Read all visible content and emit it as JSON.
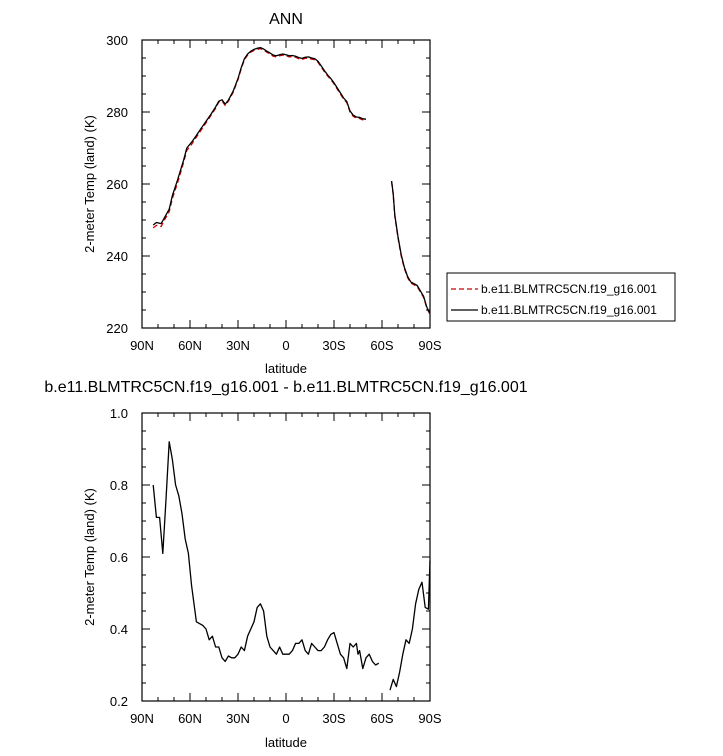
{
  "chart_data": [
    {
      "type": "line",
      "title": "ANN",
      "xlabel": "latitude",
      "ylabel": "2-meter Temp (land) (K)",
      "xlim": [
        90,
        -90
      ],
      "ylim": [
        220,
        300
      ],
      "xticks": [
        90,
        60,
        30,
        0,
        -30,
        -60,
        -90
      ],
      "xtick_labels": [
        "90N",
        "60N",
        "30N",
        "0",
        "30S",
        "60S",
        "90S"
      ],
      "yticks": [
        220,
        240,
        260,
        280,
        300
      ],
      "ytick_labels": [
        "220",
        "240",
        "260",
        "280",
        "300"
      ],
      "grid": false,
      "legend_position": "right",
      "series": [
        {
          "name": "b.e11.BLMTRC5CN.f19_g16.001",
          "color": "#cc0000",
          "style": "dashed",
          "points": [
            [
              83,
              247.8
            ],
            [
              81,
              248.5
            ],
            [
              78,
              248.2
            ],
            [
              76,
              250
            ],
            [
              73,
              252.3
            ],
            [
              71,
              256
            ],
            [
              68,
              260
            ],
            [
              66,
              263
            ],
            [
              64,
              266
            ],
            [
              62,
              269.3
            ],
            [
              59,
              271
            ],
            [
              56,
              273
            ],
            [
              53,
              275
            ],
            [
              50,
              277
            ],
            [
              47,
              279
            ],
            [
              44,
              281
            ],
            [
              42,
              282.8
            ],
            [
              40,
              283.1
            ],
            [
              38,
              281.8
            ],
            [
              36,
              283
            ],
            [
              33,
              285.5
            ],
            [
              30,
              289
            ],
            [
              28,
              292
            ],
            [
              26,
              294.5
            ],
            [
              24,
              295.8
            ],
            [
              22,
              296.6
            ],
            [
              20,
              297.1
            ],
            [
              18,
              297.4
            ],
            [
              16,
              297.6
            ],
            [
              14,
              297.2
            ],
            [
              12,
              296.6
            ],
            [
              10,
              296.1
            ],
            [
              8,
              295.5
            ],
            [
              6,
              295.3
            ],
            [
              4,
              295.6
            ],
            [
              2,
              295.8
            ],
            [
              0,
              295.6
            ],
            [
              -2,
              295.3
            ],
            [
              -4,
              295.4
            ],
            [
              -6,
              295.2
            ],
            [
              -8,
              294.8
            ],
            [
              -10,
              294.6
            ],
            [
              -12,
              294.9
            ],
            [
              -14,
              295
            ],
            [
              -16,
              294.7
            ],
            [
              -18,
              294.5
            ],
            [
              -20,
              293.8
            ],
            [
              -22,
              292.5
            ],
            [
              -24,
              291.2
            ],
            [
              -26,
              290
            ],
            [
              -28,
              289
            ],
            [
              -30,
              287.8
            ],
            [
              -32,
              286.4
            ],
            [
              -34,
              285
            ],
            [
              -36,
              283.6
            ],
            [
              -38,
              282.6
            ],
            [
              -40,
              280
            ],
            [
              -42,
              278.8
            ],
            [
              -44,
              278.3
            ],
            [
              -46,
              278.2
            ],
            [
              -48,
              277.8
            ],
            [
              -50,
              277.7
            ],
            null,
            [
              -66,
              260.6
            ],
            [
              -67,
              257
            ],
            [
              -68,
              251
            ],
            [
              -70,
              245
            ],
            [
              -72,
              240
            ],
            [
              -74,
              236.5
            ],
            [
              -76,
              234
            ],
            [
              -78,
              232.5
            ],
            [
              -80,
              232
            ],
            [
              -82,
              231.5
            ],
            [
              -84,
              230
            ],
            [
              -86,
              228.5
            ],
            [
              -88,
              225.5
            ],
            [
              -90,
              223.8
            ]
          ]
        },
        {
          "name": "b.e11.BLMTRC5CN.f19_g16.001",
          "color": "#000000",
          "style": "solid",
          "points": [
            [
              83,
              248.6
            ],
            [
              81,
              249.3
            ],
            [
              78,
              249
            ],
            [
              76,
              250.6
            ],
            [
              73,
              253
            ],
            [
              71,
              256.8
            ],
            [
              68,
              260.8
            ],
            [
              66,
              263.7
            ],
            [
              64,
              266.6
            ],
            [
              62,
              270
            ],
            [
              59,
              271.6
            ],
            [
              56,
              273.5
            ],
            [
              53,
              275.5
            ],
            [
              50,
              277.4
            ],
            [
              47,
              279.3
            ],
            [
              44,
              281.4
            ],
            [
              42,
              283
            ],
            [
              40,
              283.4
            ],
            [
              38,
              282.2
            ],
            [
              36,
              283.3
            ],
            [
              33,
              285.8
            ],
            [
              30,
              289.3
            ],
            [
              28,
              292.3
            ],
            [
              26,
              294.8
            ],
            [
              24,
              296.1
            ],
            [
              22,
              296.9
            ],
            [
              20,
              297.4
            ],
            [
              18,
              297.7
            ],
            [
              16,
              297.9
            ],
            [
              14,
              297.5
            ],
            [
              12,
              296.9
            ],
            [
              10,
              296.4
            ],
            [
              8,
              295.8
            ],
            [
              6,
              295.6
            ],
            [
              4,
              295.9
            ],
            [
              2,
              296.1
            ],
            [
              0,
              295.9
            ],
            [
              -2,
              295.6
            ],
            [
              -4,
              295.7
            ],
            [
              -6,
              295.5
            ],
            [
              -8,
              295.1
            ],
            [
              -10,
              294.9
            ],
            [
              -12,
              295.2
            ],
            [
              -14,
              295.3
            ],
            [
              -16,
              295
            ],
            [
              -18,
              294.8
            ],
            [
              -20,
              294.1
            ],
            [
              -22,
              292.8
            ],
            [
              -24,
              291.5
            ],
            [
              -26,
              290.3
            ],
            [
              -28,
              289.3
            ],
            [
              -30,
              288.1
            ],
            [
              -32,
              286.7
            ],
            [
              -34,
              285.3
            ],
            [
              -36,
              283.9
            ],
            [
              -38,
              282.9
            ],
            [
              -40,
              280.3
            ],
            [
              -42,
              279.1
            ],
            [
              -44,
              278.6
            ],
            [
              -46,
              278.5
            ],
            [
              -48,
              278.1
            ],
            [
              -50,
              278
            ],
            null,
            [
              -66,
              260.8
            ],
            [
              -67,
              257.3
            ],
            [
              -68,
              251.4
            ],
            [
              -70,
              245.4
            ],
            [
              -72,
              240.4
            ],
            [
              -74,
              236.8
            ],
            [
              -76,
              234.3
            ],
            [
              -78,
              232.8
            ],
            [
              -80,
              232.3
            ],
            [
              -82,
              231.8
            ],
            [
              -84,
              230.3
            ],
            [
              -86,
              228.8
            ],
            [
              -88,
              225.8
            ],
            [
              -90,
              224
            ]
          ]
        }
      ]
    },
    {
      "type": "line",
      "title": "b.e11.BLMTRC5CN.f19_g16.001 - b.e11.BLMTRC5CN.f19_g16.001",
      "xlabel": "latitude",
      "ylabel": "2-meter Temp (land) (K)",
      "xlim": [
        90,
        -90
      ],
      "ylim": [
        0.2,
        1.0
      ],
      "xticks": [
        90,
        60,
        30,
        0,
        -30,
        -60,
        -90
      ],
      "xtick_labels": [
        "90N",
        "60N",
        "30N",
        "0",
        "30S",
        "60S",
        "90S"
      ],
      "yticks": [
        0.2,
        0.4,
        0.6,
        0.8,
        1.0
      ],
      "ytick_labels": [
        "0.2",
        "0.4",
        "0.6",
        "0.8",
        "1.0"
      ],
      "grid": false,
      "series": [
        {
          "color": "#000000",
          "style": "solid",
          "points": [
            [
              83,
              0.8
            ],
            [
              81,
              0.71
            ],
            [
              79,
              0.71
            ],
            [
              77,
              0.61
            ],
            [
              75,
              0.76
            ],
            [
              73,
              0.92
            ],
            [
              71,
              0.87
            ],
            [
              69,
              0.8
            ],
            [
              67,
              0.77
            ],
            [
              65,
              0.72
            ],
            [
              63,
              0.65
            ],
            [
              61,
              0.61
            ],
            [
              59,
              0.52
            ],
            [
              56,
              0.42
            ],
            [
              52,
              0.41
            ],
            [
              50,
              0.4
            ],
            [
              48,
              0.37
            ],
            [
              46,
              0.38
            ],
            [
              44,
              0.35
            ],
            [
              42,
              0.35
            ],
            [
              40,
              0.32
            ],
            [
              38,
              0.31
            ],
            [
              36,
              0.325
            ],
            [
              34,
              0.32
            ],
            [
              32,
              0.32
            ],
            [
              30,
              0.33
            ],
            [
              28,
              0.35
            ],
            [
              26,
              0.34
            ],
            [
              24,
              0.38
            ],
            [
              22,
              0.4
            ],
            [
              20,
              0.42
            ],
            [
              18,
              0.46
            ],
            [
              16,
              0.47
            ],
            [
              14,
              0.45
            ],
            [
              12,
              0.38
            ],
            [
              10,
              0.35
            ],
            [
              8,
              0.34
            ],
            [
              6,
              0.33
            ],
            [
              4,
              0.35
            ],
            [
              2,
              0.33
            ],
            [
              0,
              0.33
            ],
            [
              -2,
              0.33
            ],
            [
              -4,
              0.34
            ],
            [
              -6,
              0.36
            ],
            [
              -8,
              0.36
            ],
            [
              -10,
              0.37
            ],
            [
              -12,
              0.34
            ],
            [
              -14,
              0.33
            ],
            [
              -16,
              0.36
            ],
            [
              -18,
              0.35
            ],
            [
              -20,
              0.34
            ],
            [
              -22,
              0.34
            ],
            [
              -24,
              0.35
            ],
            [
              -26,
              0.37
            ],
            [
              -28,
              0.385
            ],
            [
              -30,
              0.39
            ],
            [
              -32,
              0.36
            ],
            [
              -34,
              0.33
            ],
            [
              -36,
              0.32
            ],
            [
              -38,
              0.29
            ],
            [
              -40,
              0.36
            ],
            [
              -42,
              0.35
            ],
            [
              -44,
              0.36
            ],
            [
              -45,
              0.33
            ],
            [
              -46,
              0.34
            ],
            [
              -48,
              0.29
            ],
            [
              -50,
              0.32
            ],
            [
              -52,
              0.33
            ],
            [
              -54,
              0.31
            ],
            [
              -56,
              0.3
            ],
            [
              -58,
              0.305
            ],
            null,
            [
              -65,
              0.23
            ],
            [
              -67,
              0.26
            ],
            [
              -69,
              0.24
            ],
            [
              -71,
              0.28
            ],
            [
              -73,
              0.33
            ],
            [
              -75,
              0.37
            ],
            [
              -77,
              0.36
            ],
            [
              -79,
              0.4
            ],
            [
              -81,
              0.47
            ],
            [
              -83,
              0.51
            ],
            [
              -85,
              0.53
            ],
            [
              -87,
              0.46
            ],
            [
              -89,
              0.455
            ],
            [
              -90,
              0.59
            ]
          ]
        }
      ]
    }
  ],
  "legend": {
    "items": [
      {
        "label": "b.e11.BLMTRC5CN.f19_g16.001",
        "color": "#cc0000",
        "style": "dashed"
      },
      {
        "label": "b.e11.BLMTRC5CN.f19_g16.001",
        "color": "#000000",
        "style": "solid"
      }
    ]
  }
}
